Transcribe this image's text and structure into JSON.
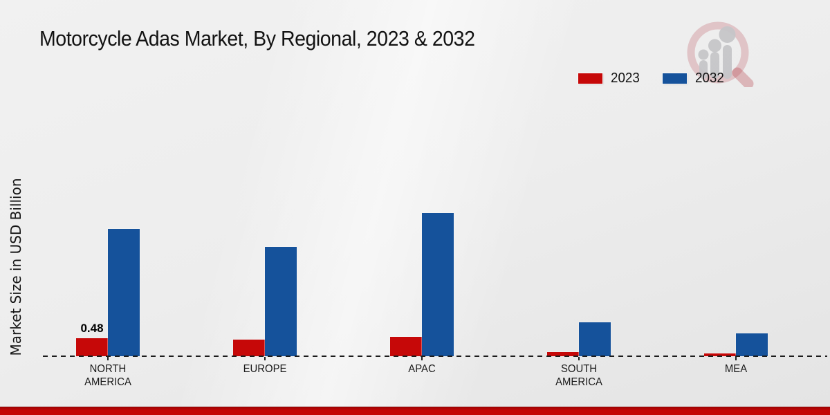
{
  "title": "Motorcycle Adas Market, By Regional, 2023 & 2032",
  "legend": {
    "items": [
      {
        "label": "2023",
        "color": "#c60808"
      },
      {
        "label": "2032",
        "color": "#15529b"
      }
    ]
  },
  "colors": {
    "series_2023": "#c60808",
    "series_2032": "#15529b",
    "footer_red_dark": "#9a0202",
    "footer_red": "#c40505",
    "baseline": "#1c1c1c",
    "logo_ring": "rgba(178,52,62,0.22)",
    "logo_gray": "#c6c6c9"
  },
  "icons": {
    "logo": "magnifier-bar-chart-icon"
  },
  "chart_data": {
    "type": "bar",
    "title": "Motorcycle Adas Market, By Regional, 2023 & 2032",
    "xlabel": "",
    "ylabel": "Market Size in USD Billion",
    "categories": [
      "NORTH AMERICA",
      "EUROPE",
      "APAC",
      "SOUTH AMERICA",
      "MEA"
    ],
    "series": [
      {
        "name": "2023",
        "color": "#c60808",
        "values": [
          0.48,
          0.44,
          0.52,
          0.11,
          0.07
        ]
      },
      {
        "name": "2032",
        "color": "#15529b",
        "values": [
          3.4,
          2.92,
          3.84,
          0.9,
          0.61
        ]
      }
    ],
    "annotations": [
      {
        "series": "2023",
        "category": "NORTH AMERICA",
        "text": "0.48"
      }
    ],
    "ylim": [
      0,
      4.5
    ],
    "grid": false,
    "axis_style": "dashed-baseline-only",
    "legend_position": "top-right"
  }
}
